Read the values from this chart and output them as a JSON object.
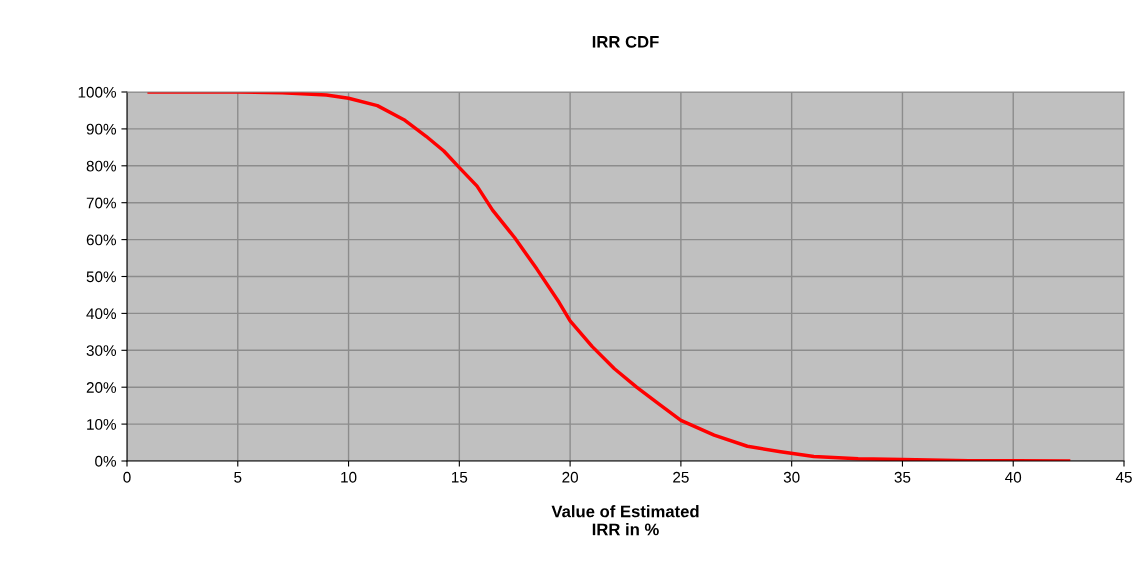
{
  "chart_data": {
    "type": "line",
    "title": "IRR CDF",
    "xlabel": "Value of Estimated\nIRR in %",
    "x": [
      1,
      5,
      7,
      9,
      10,
      11.3,
      12.5,
      13.5,
      14.3,
      15,
      15.8,
      16.5,
      17.5,
      18.5,
      19.5,
      20,
      21,
      22,
      23,
      24,
      25,
      26.5,
      28,
      29.5,
      31,
      33,
      35,
      38,
      42.5
    ],
    "series": [
      {
        "color": "#ff0000",
        "values": [
          100,
          100,
          99.8,
          99.2,
          98.3,
          96.3,
          92.5,
          88,
          84,
          79.5,
          74.5,
          68,
          60.5,
          52,
          43,
          38,
          31,
          25,
          20,
          15.5,
          11,
          7,
          4,
          2.5,
          1.2,
          0.6,
          0.4,
          0.1,
          0
        ]
      }
    ],
    "xlim": [
      0,
      45
    ],
    "xticks": [
      0,
      5,
      10,
      15,
      20,
      25,
      30,
      35,
      40,
      45
    ],
    "ylim": [
      0,
      100
    ],
    "yticks": [
      {
        "value": 0,
        "label": "0%"
      },
      {
        "value": 10,
        "label": "10%"
      },
      {
        "value": 20,
        "label": "20%"
      },
      {
        "value": 30,
        "label": "30%"
      },
      {
        "value": 40,
        "label": "40%"
      },
      {
        "value": 50,
        "label": "50%"
      },
      {
        "value": 60,
        "label": "60%"
      },
      {
        "value": 70,
        "label": "70%"
      },
      {
        "value": 80,
        "label": "80%"
      },
      {
        "value": 90,
        "label": "90%"
      },
      {
        "value": 100,
        "label": "100%"
      }
    ],
    "grid": true,
    "marker": "none",
    "line_style": "solid"
  }
}
